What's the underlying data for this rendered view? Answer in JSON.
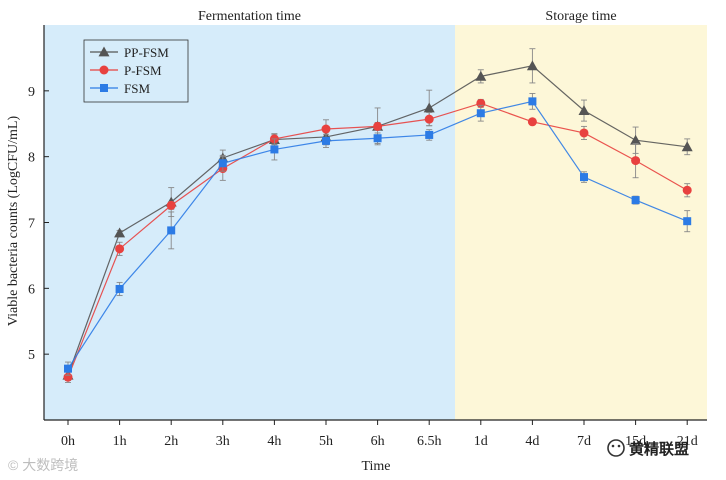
{
  "chart_data": {
    "type": "line",
    "title": "",
    "xlabel": "Time",
    "ylabel": "Viable bacteria counts (LogCFU/mL)",
    "ylim": [
      4.0,
      10.0
    ],
    "yticks": [
      5,
      6,
      7,
      8,
      9
    ],
    "categories": [
      "0h",
      "1h",
      "2h",
      "3h",
      "4h",
      "5h",
      "6h",
      "6.5h",
      "1d",
      "4d",
      "7d",
      "15d",
      "21d"
    ],
    "regions": [
      {
        "label": "Fermentation time",
        "from_index": 0,
        "to_index": 7,
        "color": "#d6ecfa"
      },
      {
        "label": "Storage time",
        "from_index": 8,
        "to_index": 12,
        "color": "#fdf7d8"
      }
    ],
    "legend": {
      "position": "top-left"
    },
    "series": [
      {
        "name": "PP-FSM",
        "marker": "triangle",
        "color": "#555555",
        "values": [
          4.68,
          6.84,
          7.31,
          7.98,
          8.26,
          8.3,
          8.46,
          8.74,
          9.22,
          9.38,
          8.7,
          8.25,
          8.15
        ],
        "errors": [
          0.08,
          0.04,
          0.22,
          0.12,
          0.08,
          0.12,
          0.28,
          0.27,
          0.1,
          0.26,
          0.16,
          0.2,
          0.12
        ]
      },
      {
        "name": "P-FSM",
        "marker": "circle",
        "color": "#e8413f",
        "values": [
          4.65,
          6.6,
          7.26,
          7.82,
          8.27,
          8.42,
          8.46,
          8.57,
          8.81,
          8.53,
          8.36,
          7.94,
          7.49
        ],
        "errors": [
          0.08,
          0.1,
          0.06,
          0.18,
          0.08,
          0.14,
          0.06,
          0.1,
          0.06,
          0.04,
          0.1,
          0.26,
          0.1
        ]
      },
      {
        "name": "FSM",
        "marker": "square",
        "color": "#2c7be5",
        "values": [
          4.78,
          5.99,
          6.88,
          7.9,
          8.11,
          8.24,
          8.28,
          8.33,
          8.66,
          8.84,
          7.69,
          7.34,
          7.02
        ],
        "errors": [
          0.1,
          0.1,
          0.28,
          0.12,
          0.16,
          0.1,
          0.08,
          0.08,
          0.12,
          0.12,
          0.08,
          0.06,
          0.16
        ]
      }
    ]
  },
  "watermarks": {
    "left": "© 大数跨境",
    "right": "黄精联盟"
  }
}
